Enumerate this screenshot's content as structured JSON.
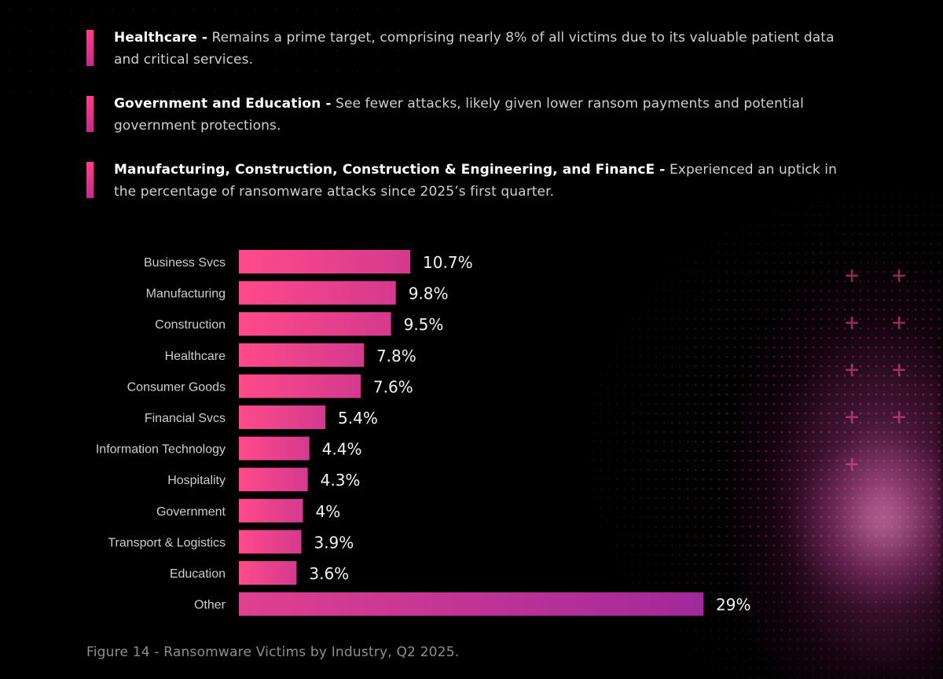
{
  "bullets": [
    {
      "title": "Healthcare -",
      "text": "Remains a prime target, comprising nearly 8% of all victims due to its valuable patient data and critical services."
    },
    {
      "title": "Government and Education -",
      "text": "See fewer attacks, likely given lower ransom payments and potential government protections."
    },
    {
      "title": "Manufacturing, Construction, Construction & Engineering, and FinancE -",
      "text": "Experienced an uptick in the percentage of ransomware attacks since 2025’s first quarter."
    }
  ],
  "chart_data": {
    "type": "bar",
    "orientation": "horizontal",
    "title": "Figure 14 - Ransomware Victims by Industry, Q2 2025.",
    "categories": [
      "Business Svcs",
      "Manufacturing",
      "Construction",
      "Healthcare",
      "Consumer Goods",
      "Financial Svcs",
      "Information Technology",
      "Hospitality",
      "Government",
      "Transport & Logistics",
      "Education",
      "Other"
    ],
    "values": [
      10.7,
      9.8,
      9.5,
      7.8,
      7.6,
      5.4,
      4.4,
      4.3,
      4,
      3.9,
      3.6,
      29
    ],
    "value_labels": [
      "10.7%",
      "9.8%",
      "9.5%",
      "7.8%",
      "7.6%",
      "5.4%",
      "4.4%",
      "4.3%",
      "4%",
      "3.9%",
      "3.6%",
      "29%"
    ],
    "unit": "%",
    "xlabel": "",
    "ylabel": "",
    "xlim": [
      0,
      29
    ],
    "grid": false,
    "legend": "none",
    "colors": {
      "bar_start": "#ff4a8a",
      "bar_end": "#d43a8e",
      "other_start": "#e0408f",
      "other_end": "#a0299a"
    }
  },
  "caption": "Figure 14 - Ransomware Victims by Industry, Q2 2025."
}
